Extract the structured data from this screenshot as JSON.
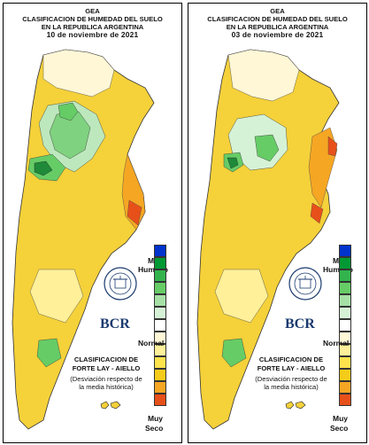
{
  "panels": [
    {
      "title_line1": "GEA",
      "title_line2": "CLASIFICACION DE HUMEDAD DEL SUELO",
      "title_line3": "EN LA REPUBLICA ARGENTINA",
      "date": "10 de noviembre de 2021"
    },
    {
      "title_line1": "GEA",
      "title_line2": "CLASIFICACION DE HUMEDAD DEL SUELO",
      "title_line3": "EN LA REPUBLICA ARGENTINA",
      "date": "03 de noviembre de 2021"
    }
  ],
  "legend": {
    "top_label_1": "Muy",
    "top_label_2": "Humedo",
    "mid_label": "Normal",
    "bottom_label_1": "Muy",
    "bottom_label_2": "Seco",
    "colors": [
      "#0033cc",
      "#009933",
      "#33b34d",
      "#66cc66",
      "#a6e0a6",
      "#d6f2d6",
      "#ffffff",
      "#fff7d6",
      "#fff099",
      "#ffe34d",
      "#f5cc1a",
      "#f5a623",
      "#e8501a"
    ]
  },
  "method": {
    "line1": "CLASIFICACION DE",
    "line2": "FORTE LAY - AIELLO",
    "line3": "(Desviación respecto de",
    "line4": "la media histórica)"
  },
  "logo": {
    "text": "BCR",
    "seal_text": "BOLSA DE COMERCIO DE ROSARIO"
  }
}
